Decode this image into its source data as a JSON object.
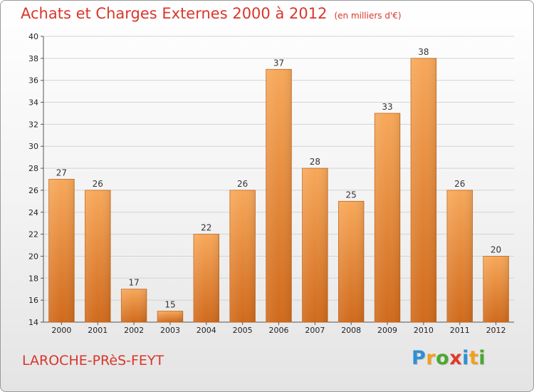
{
  "header": {
    "title": "Achats et Charges Externes 2000 à 2012",
    "unit": "(en milliers d'€)"
  },
  "footer": {
    "city": "LAROCHE-PRèS-FEYT",
    "logo_letters": [
      "P",
      "r",
      "o",
      "x",
      "i",
      "t",
      "i"
    ],
    "logo_colors": [
      "#2f8fd6",
      "#f0a020",
      "#4aa832",
      "#e03a2a",
      "#2f8fd6",
      "#f0a020",
      "#4aa832"
    ]
  },
  "chart_data": {
    "type": "bar",
    "categories": [
      "2000",
      "2001",
      "2002",
      "2003",
      "2004",
      "2005",
      "2006",
      "2007",
      "2008",
      "2009",
      "2010",
      "2011",
      "2012"
    ],
    "values": [
      27,
      26,
      17,
      15,
      22,
      26,
      37,
      28,
      25,
      33,
      38,
      26,
      20
    ],
    "ylim": [
      14,
      40
    ],
    "yticks": [
      14,
      16,
      18,
      20,
      22,
      24,
      26,
      28,
      30,
      32,
      34,
      36,
      38,
      40
    ],
    "grid": true,
    "bar_color_light": "#f7a85a",
    "bar_color_dark": "#d06a1c",
    "title": "Achats et Charges Externes 2000 à 2012",
    "xlabel": "",
    "ylabel": ""
  }
}
